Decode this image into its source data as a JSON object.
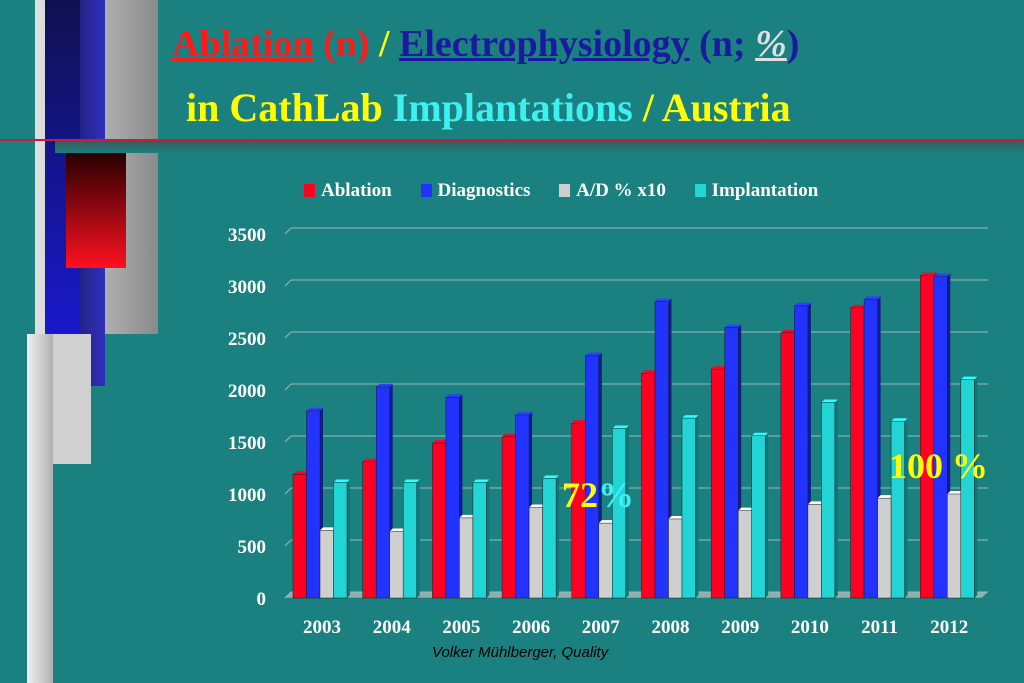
{
  "title": {
    "line1": {
      "ablation": "Ablation",
      "n1": "(n)",
      "slash": "/",
      "ep": "Electrophysiology",
      "n2": "(n;",
      "pct": "%",
      "close": ")"
    },
    "line2": {
      "in": "in CathLab",
      "impl": "Implantations",
      "austria": "/ Austria"
    }
  },
  "colors": {
    "ablation": "#ff0022",
    "diagnostics": "#2233ff",
    "ad": "#cfcfcf",
    "implantation": "#22d4d4",
    "title_red": "#ff1a1a",
    "title_blue": "#1a1aa0",
    "title_yellow": "#ffff00",
    "title_cyan": "#40f0f0"
  },
  "chart_data": {
    "type": "bar",
    "categories": [
      "2003",
      "2004",
      "2005",
      "2006",
      "2007",
      "2008",
      "2009",
      "2010",
      "2011",
      "2012"
    ],
    "series": [
      {
        "name": "Ablation",
        "values": [
          1190,
          1310,
          1490,
          1550,
          1680,
          2160,
          2200,
          2550,
          2790,
          3100
        ]
      },
      {
        "name": "Diagnostics",
        "values": [
          1800,
          2030,
          1930,
          1760,
          2330,
          2850,
          2600,
          2810,
          2870,
          3090
        ]
      },
      {
        "name": "A/D % x10",
        "values": [
          650,
          640,
          770,
          870,
          720,
          760,
          840,
          900,
          960,
          1000
        ]
      },
      {
        "name": "Implantation",
        "values": [
          1110,
          1110,
          1110,
          1150,
          1630,
          1730,
          1560,
          1880,
          1700,
          2100
        ]
      }
    ],
    "ylim": [
      0,
      3500
    ],
    "yticks": [
      0,
      500,
      1000,
      1500,
      2000,
      2500,
      3000,
      3500
    ],
    "grid": true,
    "legend": "top",
    "annotations": [
      {
        "text": "72",
        "suffix": "%"
      },
      {
        "text": "100 %"
      }
    ]
  },
  "footer": "Volker Mühlberger, Quality"
}
